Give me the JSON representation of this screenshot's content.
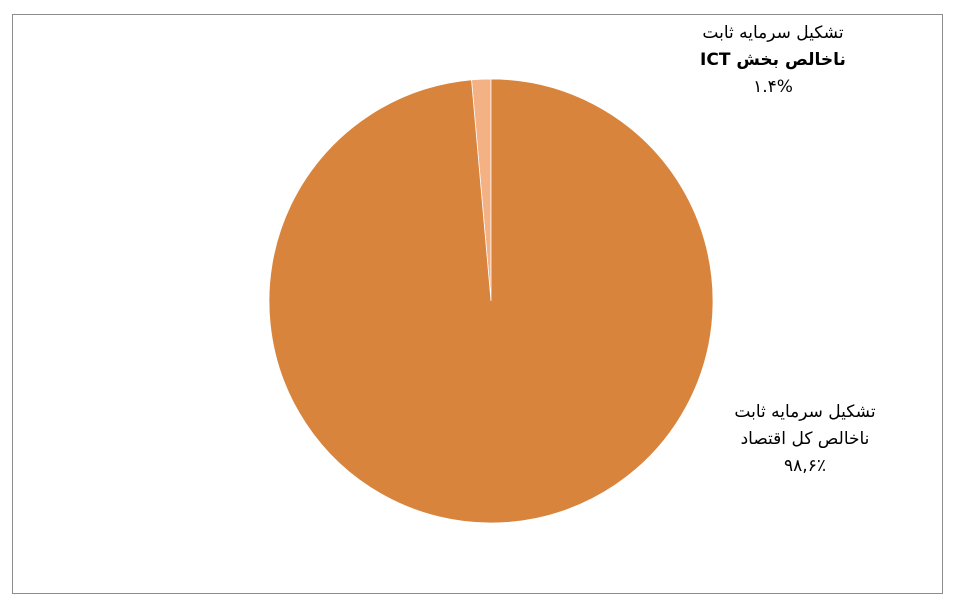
{
  "chart_data": {
    "type": "pie",
    "title": "",
    "slices": [
      {
        "label_line1": "تشکیل سرمایه ثابت",
        "label_line2": "ناخالص بخش ICT",
        "value_text": "۱.۴%",
        "value": 1.4,
        "color": "#F4B183"
      },
      {
        "label_line1": "تشکیل سرمایه ثابت",
        "label_line2": "ناخالص کل اقتصاد",
        "value_text": "۹۸,۶٪",
        "value": 98.6,
        "color": "#D9843D"
      }
    ]
  }
}
